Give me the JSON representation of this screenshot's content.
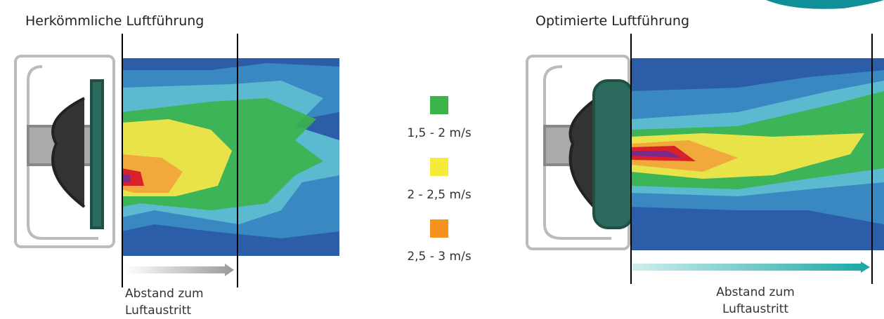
{
  "panels": [
    {
      "title": "Herkömmliche Luftführung",
      "caption": [
        "Abstand zum",
        "Luftaustritt"
      ]
    },
    {
      "title": "Optimierte Luftführung",
      "caption": [
        "Abstand zum",
        "Luftaustritt"
      ]
    }
  ],
  "legend": [
    {
      "color": "#3bb44a",
      "label": "1,5 - 2 m/s"
    },
    {
      "color": "#f6ea3b",
      "label": "2 - 2,5 m/s"
    },
    {
      "color": "#f6921e",
      "label": "2,5 - 3 m/s"
    }
  ]
}
